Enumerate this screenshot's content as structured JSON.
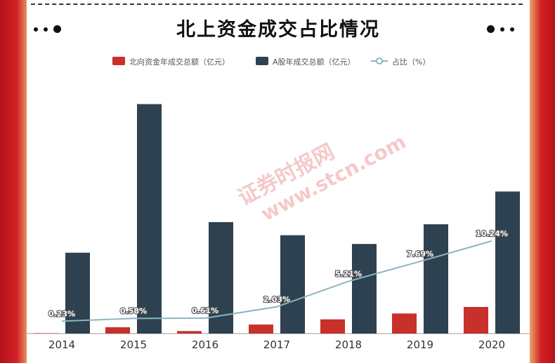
{
  "title": "北上资金成交占比情况",
  "watermark": {
    "name": "证券时报网",
    "url": "www.stcn.com"
  },
  "colors": {
    "north": "#c8302c",
    "ashare": "#2e4150",
    "ratio": "#8ab6c0"
  },
  "chart_data": {
    "type": "bar",
    "title": "北上资金成交占比情况",
    "categories": [
      "2014",
      "2015",
      "2016",
      "2017",
      "2018",
      "2019",
      "2020"
    ],
    "series": [
      {
        "name": "北向资金年成交总额（亿元）",
        "type": "bar",
        "values": [
          1.7,
          28,
          11,
          40,
          63,
          89,
          118
        ]
      },
      {
        "name": "A股年成交总额（亿元）",
        "type": "bar",
        "values": [
          3.7,
          10.5,
          5.1,
          4.5,
          4.1,
          5.0,
          6.5
        ]
      },
      {
        "name": "占比（%）",
        "type": "line",
        "values": [
          0.23,
          0.58,
          0.61,
          2.03,
          5.21,
          7.69,
          10.24
        ],
        "labels": [
          "0.23%",
          "0.58%",
          "0.61%",
          "2.03%",
          "5.21%",
          "7.69%",
          "10.24%"
        ]
      }
    ],
    "legend_position": "top",
    "grid": false
  }
}
